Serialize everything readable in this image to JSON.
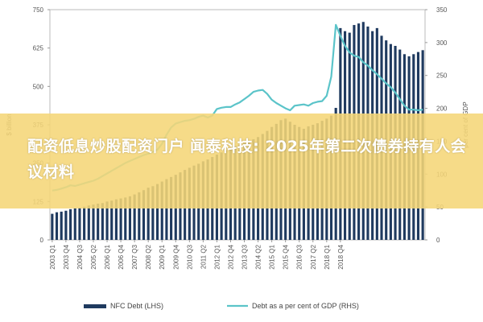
{
  "chart_data": {
    "type": "bar+line",
    "left_axis": {
      "label": "$ billion",
      "ylim": [
        0,
        750
      ],
      "ticks": [
        "0",
        "125",
        "250",
        "375",
        "500",
        "625",
        "750"
      ]
    },
    "right_axis": {
      "label": "per cent of GDP",
      "ylim": [
        0,
        350
      ],
      "ticks": [
        "0",
        "50",
        "100",
        "150",
        "200",
        "250",
        "300",
        "350"
      ]
    },
    "x_tick_labels": [
      "2003 Q1",
      "2003 Q4",
      "2004 Q3",
      "2005 Q2",
      "2006 Q1",
      "2006 Q4",
      "2007 Q3",
      "2008 Q2",
      "2009 Q1",
      "2009 Q4",
      "2010 Q3",
      "2011 Q2",
      "2012 Q1",
      "2012 Q4",
      "2013 Q3",
      "2014 Q2",
      "2015 Q1",
      "2015 Q4",
      "2016 Q3",
      "2017 Q2",
      "2018 Q1",
      "2018 Q4"
    ],
    "series": [
      {
        "name": "NFC Debt (LHS)",
        "type": "bar",
        "axis": "left",
        "color": "#1f3a5f",
        "values": [
          85,
          90,
          92,
          95,
          100,
          103,
          105,
          108,
          112,
          115,
          118,
          120,
          125,
          128,
          132,
          135,
          138,
          142,
          148,
          155,
          162,
          170,
          175,
          182,
          190,
          198,
          205,
          212,
          220,
          228,
          235,
          242,
          248,
          256,
          262,
          270,
          278,
          285,
          292,
          300,
          305,
          310,
          315,
          320,
          328,
          335,
          345,
          355,
          368,
          378,
          390,
          395,
          385,
          375,
          368,
          362,
          370,
          375,
          380,
          388,
          395,
          405,
          430,
          690,
          680,
          675,
          700,
          705,
          710,
          695,
          680,
          690,
          665,
          650,
          638,
          632,
          620,
          605,
          598,
          605,
          612,
          618
        ]
      },
      {
        "name": "Debt as a per cent of GDP (RHS)",
        "type": "line",
        "axis": "right",
        "color": "#5bc4c9",
        "values": [
          75,
          76,
          78,
          80,
          83,
          82,
          84,
          86,
          88,
          90,
          93,
          97,
          101,
          105,
          109,
          113,
          117,
          120,
          123,
          126,
          129,
          131,
          134,
          137,
          146,
          160,
          171,
          177,
          179,
          181,
          182,
          184,
          187,
          189,
          186,
          189,
          199,
          201,
          202,
          202,
          206,
          209,
          214,
          219,
          225,
          227,
          228,
          222,
          213,
          208,
          204,
          200,
          197,
          204,
          205,
          206,
          204,
          208,
          210,
          211,
          219,
          248,
          327,
          310,
          295,
          285,
          280,
          278,
          270,
          265,
          258,
          252,
          245,
          238,
          232,
          224,
          214,
          204,
          198,
          198,
          197,
          198
        ]
      }
    ],
    "legend": {
      "placement": "bottom"
    },
    "grid": false
  },
  "overlay": {
    "banner_text": "配资低息炒股配资门户 闻泰科技: 2025年第二次债券持有人会议材料",
    "banner_color": "#f5d678"
  }
}
